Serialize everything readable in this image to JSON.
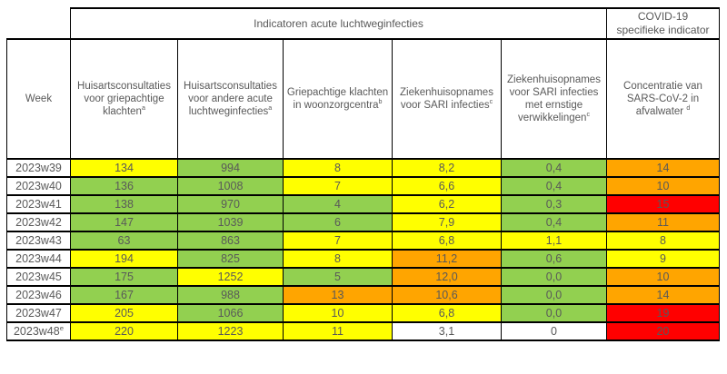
{
  "chart_data": {
    "type": "table",
    "title": "",
    "group_headers": {
      "acute": "Indicatoren acute luchtweginfecties",
      "covid_line1": "COVID-19",
      "covid_line2": "specifieke indicator"
    },
    "week_header": "Week",
    "columns": [
      {
        "text": "Huisartsconsultaties voor griepachtige klachten",
        "sup": "a"
      },
      {
        "text": "Huisartsconsultaties voor andere acute luchtweginfecties",
        "sup": "a"
      },
      {
        "text": "Griepachtige klachten in woonzorgcentra",
        "sup": "b"
      },
      {
        "text": "Ziekenhuisopnames voor SARI infecties",
        "sup": "c"
      },
      {
        "text": "Ziekenhuisopnames voor SARI infecties met ernstige verwikkelingen",
        "sup": "c"
      },
      {
        "text": "Concentratie van SARS-CoV-2 in afvalwater ",
        "sup": "d"
      }
    ],
    "palette": {
      "yellow": "#FFFF00",
      "green": "#92D050",
      "orange": "#FFA500",
      "red": "#FF0000",
      "white": "#FFFFFF"
    },
    "text_color": "#595959",
    "border_color": "#000000",
    "rows": [
      {
        "week": "2023w39",
        "week_sup": "",
        "values": [
          "134",
          "994",
          "8",
          "8,2",
          "0,4",
          "14"
        ],
        "colors": [
          "yellow",
          "green",
          "yellow",
          "yellow",
          "green",
          "orange"
        ]
      },
      {
        "week": "2023w40",
        "week_sup": "",
        "values": [
          "136",
          "1008",
          "7",
          "6,6",
          "0,4",
          "10"
        ],
        "colors": [
          "green",
          "green",
          "yellow",
          "yellow",
          "green",
          "orange"
        ]
      },
      {
        "week": "2023w41",
        "week_sup": "",
        "values": [
          "138",
          "970",
          "4",
          "6,2",
          "0,3",
          "15"
        ],
        "colors": [
          "green",
          "green",
          "green",
          "yellow",
          "green",
          "red"
        ]
      },
      {
        "week": "2023w42",
        "week_sup": "",
        "values": [
          "147",
          "1039",
          "6",
          "7,9",
          "0,4",
          "11"
        ],
        "colors": [
          "green",
          "green",
          "green",
          "yellow",
          "green",
          "orange"
        ]
      },
      {
        "week": "2023w43",
        "week_sup": "",
        "values": [
          "63",
          "863",
          "7",
          "6,8",
          "1,1",
          "8"
        ],
        "colors": [
          "green",
          "green",
          "yellow",
          "yellow",
          "yellow",
          "yellow"
        ]
      },
      {
        "week": "2023w44",
        "week_sup": "",
        "values": [
          "194",
          "825",
          "8",
          "11,2",
          "0,6",
          "9"
        ],
        "colors": [
          "yellow",
          "green",
          "yellow",
          "orange",
          "green",
          "yellow"
        ]
      },
      {
        "week": "2023w45",
        "week_sup": "",
        "values": [
          "175",
          "1252",
          "5",
          "12,0",
          "0,0",
          "10"
        ],
        "colors": [
          "green",
          "yellow",
          "green",
          "orange",
          "green",
          "orange"
        ]
      },
      {
        "week": "2023w46",
        "week_sup": "",
        "values": [
          "167",
          "988",
          "13",
          "10,6",
          "0,0",
          "14"
        ],
        "colors": [
          "green",
          "green",
          "orange",
          "orange",
          "green",
          "orange"
        ]
      },
      {
        "week": "2023w47",
        "week_sup": "",
        "values": [
          "205",
          "1066",
          "10",
          "6,8",
          "0,0",
          "19"
        ],
        "colors": [
          "yellow",
          "green",
          "yellow",
          "yellow",
          "green",
          "red"
        ]
      },
      {
        "week": "2023w48",
        "week_sup": "e",
        "values": [
          "220",
          "1223",
          "11",
          "3,1",
          "0",
          "20"
        ],
        "colors": [
          "yellow",
          "yellow",
          "yellow",
          "white",
          "white",
          "red"
        ]
      }
    ]
  }
}
